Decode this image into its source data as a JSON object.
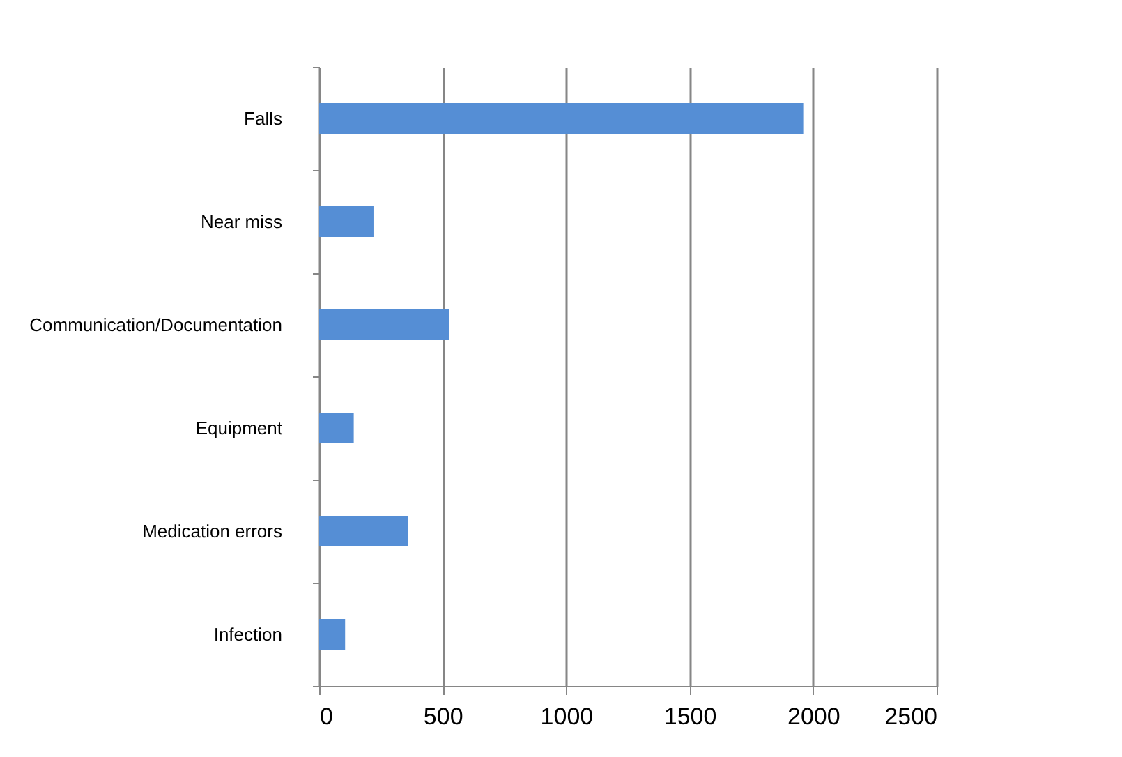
{
  "chart_data": {
    "type": "bar",
    "orientation": "horizontal",
    "categories": [
      "Falls",
      "Near miss",
      "Communication/Documentation",
      "Equipment",
      "Medication errors",
      "Infection"
    ],
    "values": [
      1960,
      220,
      527,
      140,
      360,
      105
    ],
    "color": "#558ed5",
    "xlim": [
      0,
      2500
    ],
    "xticks": [
      0,
      500,
      1000,
      1500,
      2000,
      2500
    ],
    "grid": "x"
  }
}
